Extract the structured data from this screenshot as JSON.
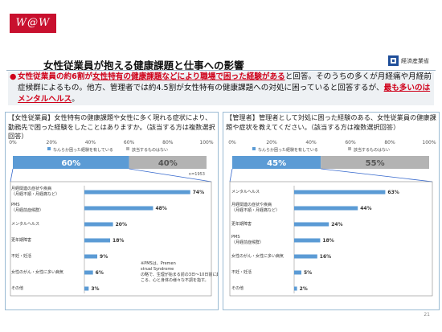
{
  "header": {
    "logo_text": "W@W",
    "title": "女性従業員が抱える健康課題と仕事への影響",
    "ministry": "経済産業省",
    "page_number": "21"
  },
  "summary": {
    "bullet": "●",
    "part1_red": "女性従業員の約6割が",
    "part2_red_underline": "女性特有の健康課題などにより職場で困った経験がある",
    "part3": "と回答。そのうちの多くが月経痛や月経前症候群によるもの。他方、管理者では約4.5割が女性特有の健康課題への対処に困っていると回答するが、",
    "part4_red_underline": "最も多いのはメンタルヘルス",
    "part5": "。"
  },
  "colors": {
    "accent_red": "#d0021b",
    "bar_blue": "#5b9bd5",
    "bar_gray": "#b3b3b3",
    "panel_border": "#9bbbd4",
    "callout_line": "#3366cc"
  },
  "chart_data": [
    {
      "type": "bar",
      "panel": "left",
      "question": "【女性従業員】女性特有の健康課題や女性に多く現れる症状により、勤務先で困った経験をしたことはありますか。（該当する方は複数選択回答）",
      "stacked": {
        "axis_ticks": [
          "0%",
          "20%",
          "40%",
          "60%",
          "80%",
          "100%"
        ],
        "series": [
          {
            "name": "なんらか困った経験を有している",
            "value": 60,
            "label": "60%"
          },
          {
            "name": "該当するものはない",
            "value": 40,
            "label": "40%"
          }
        ],
        "sample": "n=1953"
      },
      "categories": [
        "月経関連の症状や疾病（月経不順・月経痛など）",
        "PMS（月経前症候群）",
        "メンタルヘルス",
        "更年期障害",
        "不妊・妊活",
        "女性のがん・女性に多い病気",
        "その他"
      ],
      "values": [
        74,
        48,
        20,
        18,
        9,
        6,
        3
      ],
      "value_labels": [
        "74%",
        "48%",
        "20%",
        "18%",
        "9%",
        "6%",
        "3%"
      ],
      "note": "※PMSは、Premenstrual Syndromeの略で、生理が始まる前の3日〜10日前に起こる、心と身体の様々な不調を指す。"
    },
    {
      "type": "bar",
      "panel": "right",
      "question": "【管理者】管理者として対処に困った経験のある、女性従業員の健康課題や症状を教えてください。（該当する方は複数選択回答）",
      "stacked": {
        "axis_ticks": [
          "0%",
          "20%",
          "40%",
          "60%",
          "80%",
          "100%"
        ],
        "series": [
          {
            "name": "なんらか困った経験を有している",
            "value": 45,
            "label": "45%"
          },
          {
            "name": "該当するものはない",
            "value": 55,
            "label": "55%"
          }
        ]
      },
      "categories": [
        "メンタルヘルス",
        "月経関連の症状や疾病（月経不順・月経痛など）",
        "更年期障害",
        "PMS（月経前症候群）",
        "女性のがん・女性に多い病気",
        "不妊・妊活",
        "その他"
      ],
      "values": [
        63,
        44,
        24,
        18,
        16,
        5,
        2
      ],
      "value_labels": [
        "63%",
        "44%",
        "24%",
        "18%",
        "16%",
        "5%",
        "2%"
      ]
    }
  ]
}
